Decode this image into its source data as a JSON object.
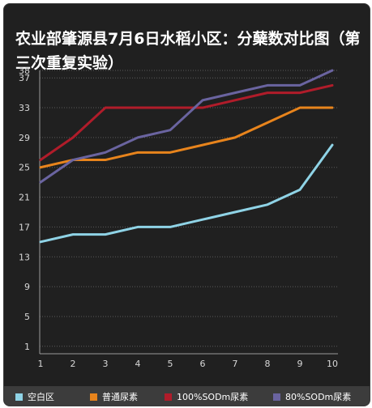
{
  "chart_data": {
    "type": "line",
    "title": "农业部肇源县7月6日水稻小区：分蘖数对比图（第三次重复实验）",
    "xlabel": "",
    "ylabel": "",
    "x": [
      1,
      2,
      3,
      4,
      5,
      6,
      7,
      8,
      9,
      10
    ],
    "ylim": [
      0,
      38
    ],
    "yticks": [
      1,
      5,
      9,
      13,
      17,
      21,
      25,
      29,
      33,
      37,
      38
    ],
    "grid": true,
    "legend_position": "bottom",
    "series": [
      {
        "name": "空白区",
        "color": "#8fd3e6",
        "values": [
          15,
          16,
          16,
          17,
          17,
          18,
          19,
          20,
          22,
          28
        ]
      },
      {
        "name": "普通尿素",
        "color": "#e8841c",
        "values": [
          25,
          26,
          26,
          27,
          27,
          28,
          29,
          31,
          33,
          33
        ]
      },
      {
        "name": "100%SODm尿素",
        "color": "#b01c2a",
        "values": [
          26,
          29,
          33,
          33,
          33,
          33,
          34,
          35,
          35,
          36
        ]
      },
      {
        "name": "80%SODm尿素",
        "color": "#6a64a0",
        "values": [
          23,
          26,
          27,
          29,
          30,
          34,
          35,
          36,
          36,
          38
        ]
      }
    ]
  }
}
